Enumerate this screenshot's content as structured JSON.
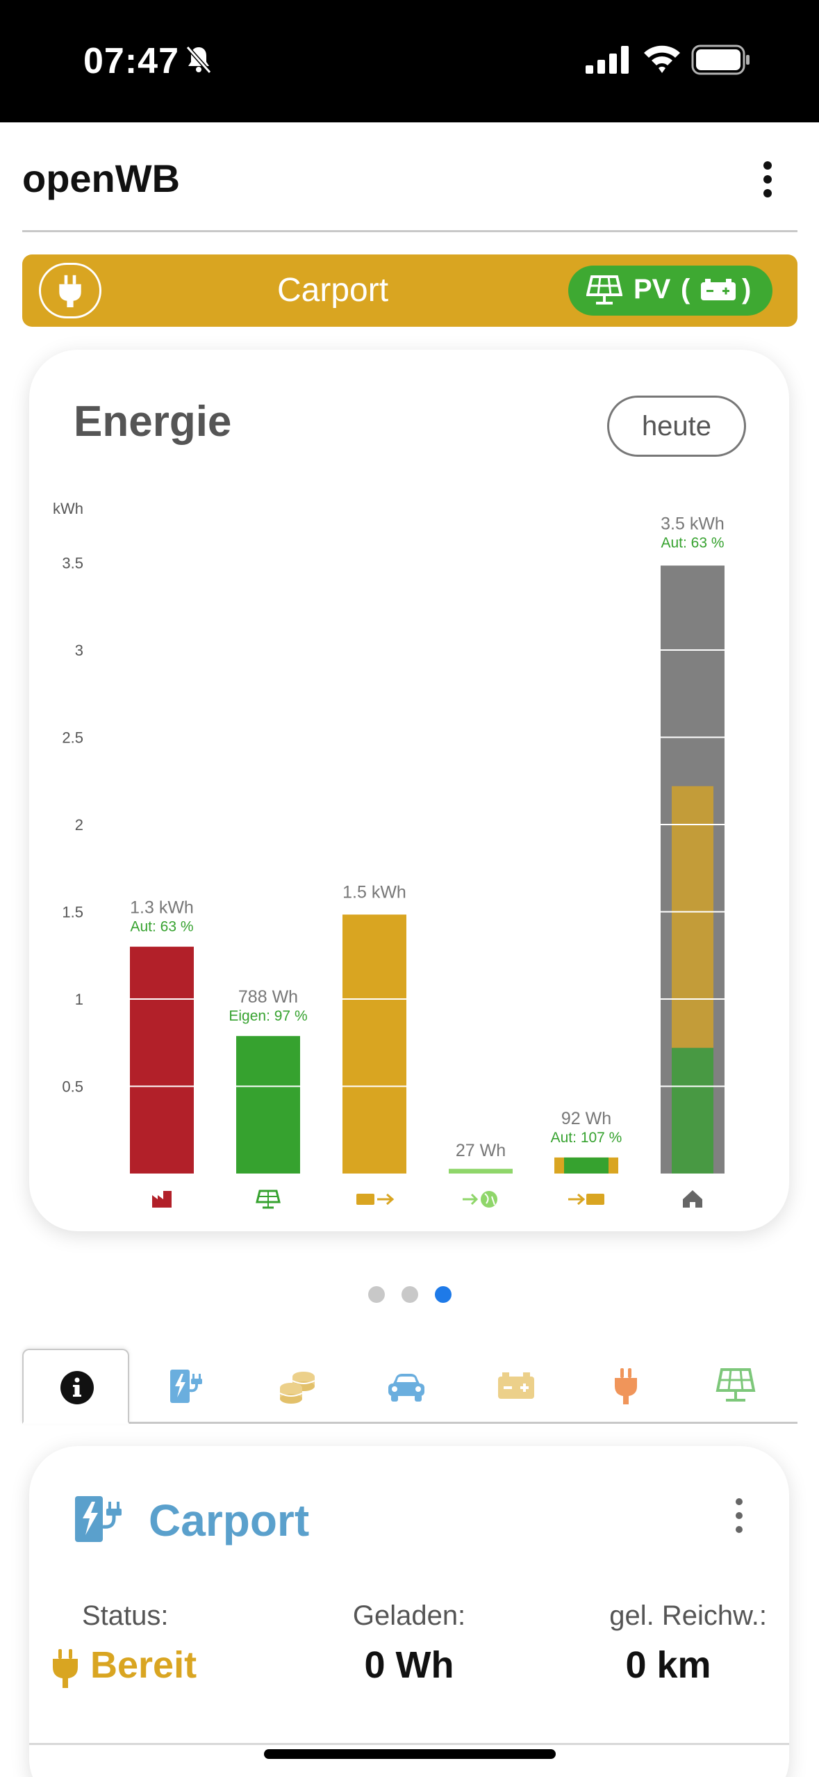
{
  "status_bar": {
    "time": "07:47"
  },
  "app": {
    "title": "openWB"
  },
  "banner": {
    "chargepoint_name": "Carport",
    "mode_label": "PV",
    "mode_open": "(",
    "mode_close": ")"
  },
  "energy_card": {
    "title": "Energie",
    "period_button": "heute"
  },
  "chart_data": {
    "type": "bar",
    "ylabel": "kWh",
    "ylim": [
      0,
      3.6
    ],
    "y_ticks": [
      "0.5",
      "1",
      "1.5",
      "2",
      "2.5",
      "3",
      "3.5"
    ],
    "categories": [
      "Netzbezug",
      "PV",
      "Batterie-Entladung",
      "Netzeinspeisung",
      "Batterie-Ladung",
      "Hausverbrauch"
    ],
    "icons": [
      "factory-icon",
      "solar-panel-icon",
      "battery-out-icon",
      "grid-export-icon",
      "battery-in-icon",
      "house-icon"
    ],
    "values_kwh": [
      1.3,
      0.788,
      1.5,
      0.027,
      0.092,
      3.5
    ],
    "value_labels": [
      "1.3 kWh",
      "788 Wh",
      "1.5 kWh",
      "27 Wh",
      "92 Wh",
      "3.5 kWh"
    ],
    "sub_labels": [
      "Aut: 63 %",
      "Eigen: 97 %",
      "",
      "",
      "Aut: 107 %",
      "Aut: 63 %"
    ],
    "house_overlay": {
      "pv_share_kwh": 0.72,
      "battery_share_kwh": 1.5
    },
    "colors": {
      "grid": "#b22029",
      "pv": "#36a22f",
      "battery": "#d9a521",
      "export": "#8fd66a",
      "house": "#808080",
      "sublabel": "#36a22f"
    }
  },
  "pager": {
    "count": 3,
    "active": 2
  },
  "tabs": [
    {
      "name": "tab-info",
      "icon": "info-icon"
    },
    {
      "name": "tab-chargepoint",
      "icon": "charging-station-icon"
    },
    {
      "name": "tab-costs",
      "icon": "coins-icon"
    },
    {
      "name": "tab-vehicle",
      "icon": "car-icon"
    },
    {
      "name": "tab-battery",
      "icon": "battery-icon"
    },
    {
      "name": "tab-smarthome",
      "icon": "plug-icon"
    },
    {
      "name": "tab-pv",
      "icon": "solar-panel-icon"
    }
  ],
  "chargepoint": {
    "title": "Carport",
    "status_label": "Status:",
    "status_value": "Bereit",
    "charged_label": "Geladen:",
    "charged_value": "0 Wh",
    "range_label": "gel. Reichw.:",
    "range_value": "0 km"
  }
}
